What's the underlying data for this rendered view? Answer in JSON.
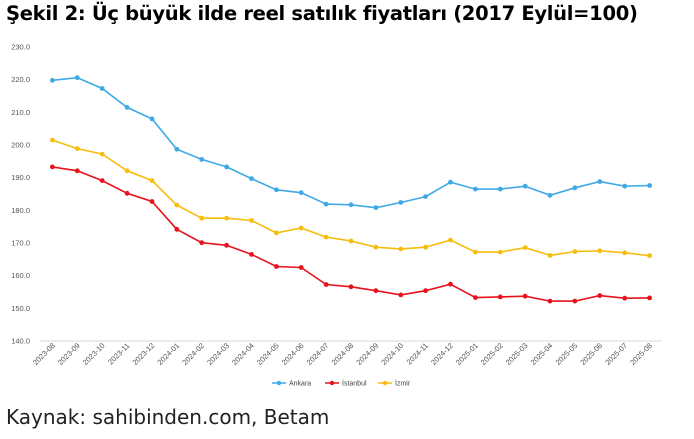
{
  "title": "Şekil 2: Üç büyük ilde reel satılık fiyatları (2017 Eylül=100)",
  "source": "Kaynak: sahibinden.com, Betam",
  "chart_data": {
    "type": "line",
    "categories": [
      "2023-08",
      "2023-09",
      "2023-10",
      "2023-11",
      "2023-12",
      "2024-01",
      "2024-02",
      "2024-03",
      "2024-04",
      "2024-05",
      "2024-06",
      "2024-07",
      "2024-08",
      "2024-09",
      "2024-10",
      "2024-11",
      "2024-12",
      "2025-01",
      "2025-02",
      "2025-03",
      "2025-04",
      "2025-05",
      "2025-06",
      "2025-07",
      "2025-08"
    ],
    "y_ticks": [
      "140.0",
      "150.0",
      "160.0",
      "170.0",
      "180.0",
      "190.0",
      "200.0",
      "210.0",
      "220.0",
      "230.0"
    ],
    "ylim": [
      140,
      230
    ],
    "grid": false,
    "legend_position": "bottom",
    "series": [
      {
        "name": "Ankara",
        "color": "#3fa9e6",
        "values": [
          219.8,
          220.6,
          217.3,
          211.5,
          208.0,
          198.7,
          195.6,
          193.3,
          189.7,
          186.3,
          185.4,
          181.9,
          181.7,
          180.8,
          182.4,
          184.2,
          188.6,
          186.5,
          186.5,
          187.4,
          184.6,
          186.9,
          188.8,
          187.4,
          187.6
        ]
      },
      {
        "name": "İstanbul",
        "color": "#e8121c",
        "values": [
          193.3,
          192.1,
          189.1,
          185.2,
          182.7,
          174.2,
          170.1,
          169.3,
          166.5,
          162.8,
          162.5,
          157.3,
          156.6,
          155.4,
          154.1,
          155.4,
          157.4,
          153.3,
          153.5,
          153.7,
          152.2,
          152.2,
          153.9,
          153.1,
          153.2
        ]
      },
      {
        "name": "İzmir",
        "color": "#f7bd0c",
        "values": [
          201.5,
          198.9,
          197.2,
          192.1,
          189.1,
          181.6,
          177.6,
          177.6,
          176.9,
          173.1,
          174.6,
          171.8,
          170.6,
          168.7,
          168.2,
          168.7,
          170.9,
          167.2,
          167.2,
          168.6,
          166.2,
          167.4,
          167.6,
          167.0,
          166.1
        ]
      }
    ]
  }
}
